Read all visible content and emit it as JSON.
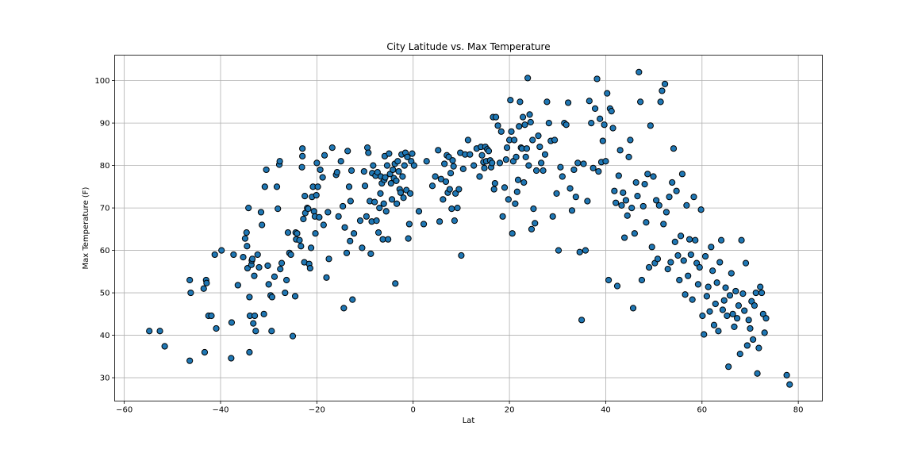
{
  "chart_data": {
    "type": "scatter",
    "title": "City Latitude vs. Max Temperature",
    "xlabel": "Lat",
    "ylabel": "Max Temperature (F)",
    "xlim": [
      -62,
      85
    ],
    "ylim": [
      24.5,
      106
    ],
    "xticks": [
      -60,
      -40,
      -20,
      0,
      20,
      40,
      60,
      80
    ],
    "yticks": [
      30,
      40,
      50,
      60,
      70,
      80,
      90,
      100
    ],
    "grid": true,
    "marker_color": "#1f77b4",
    "marker_edge": "#000000",
    "points": [
      [
        -54.8,
        41
      ],
      [
        -52.6,
        41
      ],
      [
        -51.6,
        37.4
      ],
      [
        -46.4,
        34
      ],
      [
        -46.4,
        53
      ],
      [
        -46.2,
        50
      ],
      [
        -43.5,
        51
      ],
      [
        -43.3,
        36
      ],
      [
        -43,
        53
      ],
      [
        -42.9,
        52.3
      ],
      [
        -42.5,
        44.6
      ],
      [
        -41.9,
        44.6
      ],
      [
        -41.2,
        59
      ],
      [
        -40.9,
        41.6
      ],
      [
        -39.8,
        60
      ],
      [
        -37.7,
        43
      ],
      [
        -37.8,
        34.6
      ],
      [
        -37.3,
        59
      ],
      [
        -36.4,
        51.8
      ],
      [
        -35.3,
        58.4
      ],
      [
        -34.9,
        62.8
      ],
      [
        -34.6,
        64.2
      ],
      [
        -34.5,
        61
      ],
      [
        -34.4,
        55.8
      ],
      [
        -34.2,
        70
      ],
      [
        -34,
        49
      ],
      [
        -34,
        36
      ],
      [
        -33.9,
        44.6
      ],
      [
        -33.6,
        56.6
      ],
      [
        -33.5,
        57.6
      ],
      [
        -33.4,
        58
      ],
      [
        -33.2,
        42.8
      ],
      [
        -33,
        54
      ],
      [
        -32.9,
        44.6
      ],
      [
        -32.7,
        41
      ],
      [
        -32.3,
        59
      ],
      [
        -32,
        56
      ],
      [
        -31.6,
        69
      ],
      [
        -31.4,
        66
      ],
      [
        -31,
        45
      ],
      [
        -30.8,
        75
      ],
      [
        -30.5,
        79
      ],
      [
        -30.2,
        56.4
      ],
      [
        -30,
        52
      ],
      [
        -29.6,
        49.4
      ],
      [
        -29.4,
        41
      ],
      [
        -29.3,
        49
      ],
      [
        -28.8,
        53.8
      ],
      [
        -28.3,
        75
      ],
      [
        -28.1,
        69.8
      ],
      [
        -27.8,
        80.2
      ],
      [
        -27.7,
        81
      ],
      [
        -27.6,
        55.6
      ],
      [
        -27.3,
        57
      ],
      [
        -26.6,
        50
      ],
      [
        -26.3,
        53
      ],
      [
        -26,
        64.2
      ],
      [
        -25.7,
        59.4
      ],
      [
        -25.4,
        59
      ],
      [
        -25,
        39.8
      ],
      [
        -24.5,
        49.2
      ],
      [
        -24.4,
        64.2
      ],
      [
        -24.3,
        62.6
      ],
      [
        -24.1,
        64
      ],
      [
        -23.6,
        62.4
      ],
      [
        -23.3,
        61
      ],
      [
        -23.1,
        79.6
      ],
      [
        -23,
        82.2
      ],
      [
        -23,
        84
      ],
      [
        -22.8,
        67.4
      ],
      [
        -22.6,
        57.2
      ],
      [
        -22.5,
        72.8
      ],
      [
        -22.4,
        68.8
      ],
      [
        -22,
        70
      ],
      [
        -21.8,
        69.8
      ],
      [
        -21.6,
        56.8
      ],
      [
        -21.4,
        55.8
      ],
      [
        -21.2,
        60.6
      ],
      [
        -21,
        72.6
      ],
      [
        -20.8,
        75
      ],
      [
        -20.6,
        69.2
      ],
      [
        -20.4,
        68
      ],
      [
        -20.3,
        64
      ],
      [
        -20.1,
        73
      ],
      [
        -20,
        80.6
      ],
      [
        -19.8,
        75
      ],
      [
        -19.5,
        67.8
      ],
      [
        -19.3,
        79
      ],
      [
        -18.8,
        77.2
      ],
      [
        -18.6,
        66
      ],
      [
        -18.4,
        82.4
      ],
      [
        -18,
        53.6
      ],
      [
        -17.7,
        69
      ],
      [
        -17.5,
        58
      ],
      [
        -16.8,
        84.2
      ],
      [
        -16,
        77.8
      ],
      [
        -15.8,
        78.4
      ],
      [
        -15.5,
        68
      ],
      [
        -15,
        81
      ],
      [
        -14.6,
        70.4
      ],
      [
        -14.4,
        46.4
      ],
      [
        -14.2,
        65.4
      ],
      [
        -13.8,
        59.4
      ],
      [
        -13.6,
        83.4
      ],
      [
        -13.3,
        75
      ],
      [
        -13.1,
        62.2
      ],
      [
        -13,
        71.6
      ],
      [
        -12.8,
        78.8
      ],
      [
        -12.6,
        48.4
      ],
      [
        -12.3,
        64
      ],
      [
        -11,
        67
      ],
      [
        -10.6,
        60.6
      ],
      [
        -10.2,
        78.6
      ],
      [
        -10,
        75.2
      ],
      [
        -9.7,
        68
      ],
      [
        -9.5,
        84.2
      ],
      [
        -9.3,
        83
      ],
      [
        -9,
        71.6
      ],
      [
        -8.8,
        59.2
      ],
      [
        -8.6,
        66.8
      ],
      [
        -8.5,
        78.2
      ],
      [
        -8.3,
        80
      ],
      [
        -8,
        71.4
      ],
      [
        -7.8,
        77.6
      ],
      [
        -7.6,
        67
      ],
      [
        -7.4,
        78.4
      ],
      [
        -7.2,
        64.2
      ],
      [
        -7,
        70
      ],
      [
        -6.8,
        73.4
      ],
      [
        -6.7,
        77.4
      ],
      [
        -6.5,
        75.8
      ],
      [
        -6.3,
        62.6
      ],
      [
        -6.1,
        71
      ],
      [
        -6,
        76.6
      ],
      [
        -5.9,
        82.2
      ],
      [
        -5.8,
        77.2
      ],
      [
        -5.6,
        69.2
      ],
      [
        -5.4,
        80
      ],
      [
        -5.2,
        62.6
      ],
      [
        -5,
        82.8
      ],
      [
        -4.8,
        78
      ],
      [
        -4.6,
        75.8
      ],
      [
        -4.4,
        72
      ],
      [
        -4.2,
        79
      ],
      [
        -4,
        77
      ],
      [
        -3.8,
        80.4
      ],
      [
        -3.7,
        52.2
      ],
      [
        -3.5,
        76.4
      ],
      [
        -3.4,
        71
      ],
      [
        -3.2,
        81
      ],
      [
        -3,
        78.6
      ],
      [
        -2.8,
        74.4
      ],
      [
        -2.6,
        73.6
      ],
      [
        -2.4,
        82.6
      ],
      [
        -2.2,
        77.4
      ],
      [
        -2,
        72.4
      ],
      [
        -1.8,
        80
      ],
      [
        -1.6,
        83
      ],
      [
        -1.4,
        74.2
      ],
      [
        -1.2,
        82
      ],
      [
        -1,
        62.8
      ],
      [
        -0.8,
        66.2
      ],
      [
        -0.6,
        73.4
      ],
      [
        -0.4,
        81
      ],
      [
        -0.2,
        82.8
      ],
      [
        0.2,
        80
      ],
      [
        1.2,
        69.2
      ],
      [
        2.2,
        66.2
      ],
      [
        2.8,
        81
      ],
      [
        4,
        75.2
      ],
      [
        4.6,
        77.4
      ],
      [
        5.2,
        83.6
      ],
      [
        5.5,
        66.8
      ],
      [
        5.8,
        76.8
      ],
      [
        6.2,
        72
      ],
      [
        6.5,
        80.4
      ],
      [
        6.8,
        76.2
      ],
      [
        7,
        82.4
      ],
      [
        7.2,
        73.6
      ],
      [
        7.4,
        82
      ],
      [
        7.6,
        74.4
      ],
      [
        7.8,
        78.2
      ],
      [
        8,
        69.8
      ],
      [
        8.2,
        81.2
      ],
      [
        8.4,
        79.8
      ],
      [
        8.6,
        67
      ],
      [
        8.8,
        73.4
      ],
      [
        9.2,
        70
      ],
      [
        9.5,
        74.4
      ],
      [
        9.8,
        83
      ],
      [
        10,
        58.8
      ],
      [
        10.4,
        79.2
      ],
      [
        10.8,
        82.6
      ],
      [
        11.4,
        86
      ],
      [
        11.8,
        82.6
      ],
      [
        12.6,
        80
      ],
      [
        13.2,
        84
      ],
      [
        13.8,
        77.4
      ],
      [
        14.1,
        84.4
      ],
      [
        14.3,
        82.4
      ],
      [
        14.6,
        80.8
      ],
      [
        14.8,
        79.4
      ],
      [
        15,
        84.4
      ],
      [
        15.2,
        81
      ],
      [
        15.4,
        83.8
      ],
      [
        15.7,
        83.4
      ],
      [
        16,
        81.2
      ],
      [
        16.2,
        79.6
      ],
      [
        16.4,
        80.6
      ],
      [
        16.6,
        91.4
      ],
      [
        16.8,
        74.4
      ],
      [
        17,
        75.8
      ],
      [
        17.2,
        91.4
      ],
      [
        17.6,
        89.4
      ],
      [
        18,
        80.6
      ],
      [
        18.3,
        88
      ],
      [
        18.6,
        68
      ],
      [
        19,
        74.8
      ],
      [
        19.3,
        81.4
      ],
      [
        19.5,
        84.2
      ],
      [
        19.8,
        72
      ],
      [
        20,
        86
      ],
      [
        20.2,
        95.4
      ],
      [
        20.4,
        88
      ],
      [
        20.6,
        64
      ],
      [
        20.8,
        81
      ],
      [
        21,
        86
      ],
      [
        21.2,
        71
      ],
      [
        21.4,
        82
      ],
      [
        21.6,
        73.8
      ],
      [
        21.8,
        76.6
      ],
      [
        22,
        89.2
      ],
      [
        22.2,
        95
      ],
      [
        22.4,
        84.2
      ],
      [
        22.6,
        84
      ],
      [
        22.8,
        91.4
      ],
      [
        23,
        76
      ],
      [
        23.2,
        89.6
      ],
      [
        23.4,
        82
      ],
      [
        23.6,
        84
      ],
      [
        23.8,
        100.6
      ],
      [
        24,
        80
      ],
      [
        24.2,
        92
      ],
      [
        24.4,
        90.2
      ],
      [
        24.6,
        65
      ],
      [
        24.8,
        86
      ],
      [
        25,
        69.8
      ],
      [
        25.3,
        66.4
      ],
      [
        25.6,
        78.8
      ],
      [
        26,
        87
      ],
      [
        26.3,
        84.4
      ],
      [
        26.6,
        80.6
      ],
      [
        27,
        78.8
      ],
      [
        27.4,
        82.6
      ],
      [
        27.8,
        95
      ],
      [
        28.2,
        90
      ],
      [
        28.6,
        85.8
      ],
      [
        29,
        68
      ],
      [
        29.4,
        86
      ],
      [
        29.8,
        73.4
      ],
      [
        30.2,
        60
      ],
      [
        30.6,
        79.6
      ],
      [
        31,
        77.4
      ],
      [
        31.4,
        90
      ],
      [
        31.8,
        89.6
      ],
      [
        32.2,
        94.8
      ],
      [
        32.6,
        74.6
      ],
      [
        33,
        69.4
      ],
      [
        33.4,
        79
      ],
      [
        33.8,
        72.6
      ],
      [
        34.2,
        80.6
      ],
      [
        34.6,
        59.6
      ],
      [
        35,
        43.6
      ],
      [
        35.4,
        80.4
      ],
      [
        35.8,
        60
      ],
      [
        36.2,
        71.6
      ],
      [
        36.6,
        95.2
      ],
      [
        37,
        90
      ],
      [
        37.4,
        79.4
      ],
      [
        37.8,
        93.4
      ],
      [
        38.2,
        100.4
      ],
      [
        38.5,
        78.6
      ],
      [
        38.8,
        91
      ],
      [
        39.1,
        80.8
      ],
      [
        39.4,
        85.8
      ],
      [
        39.7,
        89.6
      ],
      [
        40,
        81
      ],
      [
        40.3,
        97
      ],
      [
        40.6,
        53
      ],
      [
        40.9,
        93.4
      ],
      [
        41.2,
        92.8
      ],
      [
        41.5,
        88.8
      ],
      [
        41.8,
        74
      ],
      [
        42.1,
        71.2
      ],
      [
        42.4,
        51.6
      ],
      [
        42.7,
        77.6
      ],
      [
        43,
        83.6
      ],
      [
        43.3,
        70.6
      ],
      [
        43.6,
        73.6
      ],
      [
        43.9,
        63
      ],
      [
        44.2,
        71.8
      ],
      [
        44.5,
        68.2
      ],
      [
        44.8,
        82
      ],
      [
        45.1,
        86
      ],
      [
        45.4,
        70
      ],
      [
        45.7,
        46.4
      ],
      [
        46,
        64
      ],
      [
        46.3,
        76
      ],
      [
        46.6,
        72.8
      ],
      [
        46.9,
        102
      ],
      [
        47.2,
        95
      ],
      [
        47.5,
        53
      ],
      [
        47.8,
        70.4
      ],
      [
        48.1,
        75.6
      ],
      [
        48.4,
        66.6
      ],
      [
        48.7,
        78
      ],
      [
        49,
        56
      ],
      [
        49.3,
        89.4
      ],
      [
        49.6,
        60.8
      ],
      [
        49.9,
        77.4
      ],
      [
        50.2,
        57
      ],
      [
        50.5,
        71.8
      ],
      [
        50.8,
        58
      ],
      [
        51.1,
        70.6
      ],
      [
        51.4,
        95
      ],
      [
        51.7,
        97.6
      ],
      [
        52,
        66.2
      ],
      [
        52.3,
        99.2
      ],
      [
        52.6,
        69
      ],
      [
        52.9,
        55.6
      ],
      [
        53.2,
        72.6
      ],
      [
        53.5,
        57.2
      ],
      [
        53.8,
        76
      ],
      [
        54.1,
        84
      ],
      [
        54.4,
        62
      ],
      [
        54.7,
        74
      ],
      [
        55,
        58.8
      ],
      [
        55.3,
        53
      ],
      [
        55.6,
        63.4
      ],
      [
        55.9,
        78
      ],
      [
        56.2,
        57.6
      ],
      [
        56.5,
        49.6
      ],
      [
        56.8,
        70.6
      ],
      [
        57.1,
        54
      ],
      [
        57.4,
        62.6
      ],
      [
        57.7,
        59
      ],
      [
        58,
        48.4
      ],
      [
        58.3,
        72.6
      ],
      [
        58.6,
        62.4
      ],
      [
        58.9,
        57
      ],
      [
        59.2,
        52
      ],
      [
        59.5,
        56
      ],
      [
        59.8,
        69.6
      ],
      [
        60.1,
        44.6
      ],
      [
        60.4,
        40.2
      ],
      [
        60.7,
        58.6
      ],
      [
        61,
        49.2
      ],
      [
        61.3,
        51.4
      ],
      [
        61.6,
        45.6
      ],
      [
        61.9,
        60.8
      ],
      [
        62.2,
        55.2
      ],
      [
        62.5,
        42.4
      ],
      [
        62.8,
        47.4
      ],
      [
        63.1,
        52.4
      ],
      [
        63.4,
        41
      ],
      [
        63.7,
        57.2
      ],
      [
        64,
        62.4
      ],
      [
        64.3,
        46
      ],
      [
        64.6,
        48.2
      ],
      [
        64.9,
        51.2
      ],
      [
        65.2,
        44.6
      ],
      [
        65.5,
        32.6
      ],
      [
        65.8,
        49.4
      ],
      [
        66.1,
        54.6
      ],
      [
        66.4,
        45
      ],
      [
        66.7,
        42
      ],
      [
        67,
        50.4
      ],
      [
        67.3,
        44
      ],
      [
        67.6,
        47
      ],
      [
        67.9,
        35.6
      ],
      [
        68.2,
        62.4
      ],
      [
        68.5,
        49.8
      ],
      [
        68.8,
        45.8
      ],
      [
        69.1,
        57
      ],
      [
        69.4,
        37.6
      ],
      [
        69.7,
        43.6
      ],
      [
        70,
        41.6
      ],
      [
        70.3,
        48
      ],
      [
        70.6,
        39
      ],
      [
        70.9,
        47
      ],
      [
        71.2,
        50
      ],
      [
        71.5,
        31
      ],
      [
        71.8,
        37
      ],
      [
        72.1,
        51.4
      ],
      [
        72.4,
        50
      ],
      [
        72.7,
        45
      ],
      [
        73,
        40.6
      ],
      [
        73.3,
        44
      ],
      [
        77.6,
        30.6
      ],
      [
        78.2,
        28.4
      ]
    ]
  }
}
